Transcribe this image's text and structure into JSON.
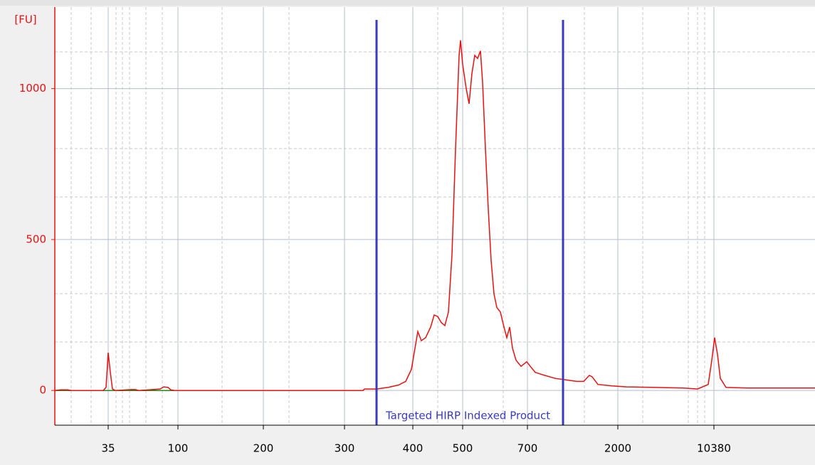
{
  "chart_data": {
    "type": "line",
    "y_label": "[FU]",
    "annotation": "Targeted HIRP Indexed Product",
    "x": [
      0,
      8,
      18,
      23,
      68,
      72,
      75,
      78,
      81,
      85,
      108,
      113,
      118,
      148,
      153,
      159,
      163,
      168,
      433,
      435,
      452,
      468,
      483,
      493,
      501,
      506,
      510,
      515,
      521,
      528,
      533,
      538,
      543,
      548,
      553,
      558,
      563,
      568,
      570,
      573,
      578,
      582,
      586,
      590,
      594,
      598,
      601,
      605,
      609,
      613,
      617,
      621,
      626,
      630,
      635,
      639,
      643,
      648,
      655,
      663,
      668,
      675,
      688,
      703,
      718,
      733,
      743,
      751,
      755,
      763,
      783,
      803,
      843,
      883,
      903,
      918,
      923,
      927,
      931,
      935,
      943,
      973,
      1068
    ],
    "series": [
      {
        "color": "#e81010",
        "values": [
          0,
          2,
          2,
          0,
          0,
          10,
          125,
          60,
          5,
          0,
          3,
          3,
          0,
          5,
          12,
          10,
          2,
          0,
          0,
          5,
          5,
          10,
          18,
          30,
          70,
          140,
          195,
          165,
          175,
          210,
          250,
          245,
          225,
          215,
          260,
          450,
          800,
          1110,
          1160,
          1080,
          1000,
          950,
          1050,
          1110,
          1100,
          1125,
          1020,
          800,
          600,
          430,
          320,
          275,
          260,
          220,
          175,
          210,
          140,
          100,
          80,
          95,
          80,
          60,
          50,
          40,
          35,
          30,
          30,
          50,
          45,
          20,
          15,
          12,
          10,
          8,
          5,
          20,
          100,
          175,
          120,
          40,
          10,
          8,
          8
        ]
      }
    ],
    "baseline": {
      "color": "#1a8a1a",
      "x": [
        0,
        433
      ],
      "values": [
        0,
        0
      ]
    },
    "markers": {
      "color": "#3a3ac0",
      "x": [
        452,
        714
      ]
    },
    "xlim": [
      0,
      1068
    ],
    "ylim": [
      -115,
      1270
    ],
    "yticks": [
      0,
      500,
      1000
    ],
    "xticks": [
      {
        "value": 75,
        "label": "35"
      },
      {
        "value": 173,
        "label": "100"
      },
      {
        "value": 293,
        "label": "200"
      },
      {
        "value": 407,
        "label": "300"
      },
      {
        "value": 503,
        "label": "400"
      },
      {
        "value": 573,
        "label": "500"
      },
      {
        "value": 664,
        "label": "700"
      },
      {
        "value": 791,
        "label": "2000"
      },
      {
        "value": 926,
        "label": "10380"
      }
    ],
    "grid": true
  }
}
